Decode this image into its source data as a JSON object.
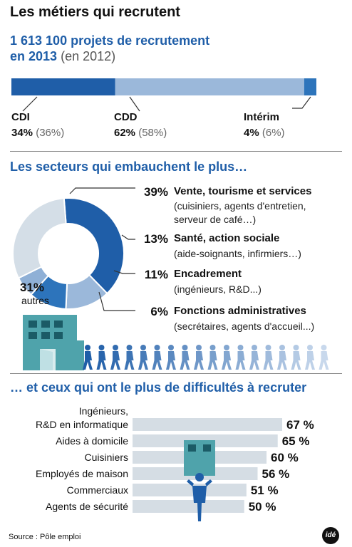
{
  "title": "Les métiers qui recrutent",
  "headline": {
    "main_1": "1 613 100 projets de recrutement",
    "main_2": "en 2013",
    "prev": "(en 2012)"
  },
  "contracts": [
    {
      "label": "CDI",
      "value": "34%",
      "prev": "(36%)",
      "share": 34,
      "color": "#1f5ea8"
    },
    {
      "label": "CDD",
      "value": "62%",
      "prev": "(58%)",
      "share": 62,
      "color": "#9bb8da"
    },
    {
      "label": "Intérim",
      "value": "4%",
      "prev": "(6%)",
      "share": 4,
      "color": "#2d74bb"
    }
  ],
  "sectors_title": "Les secteurs qui embauchent le plus…",
  "sectors": [
    {
      "pct": "39%",
      "name": "Vente, tourisme et services",
      "desc": [
        "(cuisiniers, agents d'entretien,",
        "serveur de café…)"
      ]
    },
    {
      "pct": "13%",
      "name": "Santé, action sociale",
      "desc": [
        "(aide-soignants, infirmiers…)"
      ]
    },
    {
      "pct": "11%",
      "name": "Encadrement",
      "desc": [
        "(ingénieurs, R&D...)"
      ]
    },
    {
      "pct": "6%",
      "name": "Fonctions administratives",
      "desc": [
        "(secrétaires, agents d'accueil...)"
      ]
    }
  ],
  "others": {
    "pct": "31%",
    "label": "autres"
  },
  "difficulty_title": "… et ceux qui ont le plus de difficultés à recruter",
  "chart_data": [
    {
      "type": "bar",
      "title": "",
      "categories": [
        "CDI",
        "CDD",
        "Intérim"
      ],
      "series": [
        {
          "values": [
            34,
            62,
            4
          ]
        }
      ],
      "stacked": true
    },
    {
      "type": "pie",
      "title": "Les secteurs qui embauchent le plus…",
      "labels": [
        "Vente, tourisme et services",
        "Santé, action sociale",
        "Encadrement",
        "Fonctions administratives",
        "autres"
      ],
      "values": [
        39,
        13,
        11,
        6,
        31
      ],
      "colors": [
        "#1f5ea8",
        "#9bb8da",
        "#2d74bb",
        "#8fb0d6",
        "#d4dee7"
      ]
    },
    {
      "type": "bar",
      "title": "… et ceux qui ont le plus de difficultés à recruter",
      "categories": [
        "Ingénieurs, R&D en informatique",
        "Aides à domicile",
        "Cuisiniers",
        "Employés de maison",
        "Commerciaux",
        "Agents de sécurité"
      ],
      "category_lines": [
        [
          "Ingénieurs,",
          "R&D en informatique"
        ],
        [
          "Aides à domicile"
        ],
        [
          "Cuisiniers"
        ],
        [
          "Employés de maison"
        ],
        [
          "Commerciaux"
        ],
        [
          "Agents de sécurité"
        ]
      ],
      "values": [
        67,
        65,
        60,
        56,
        51,
        50
      ],
      "value_labels": [
        "67 %",
        "65 %",
        "60 %",
        "56 %",
        "51 %",
        "50 %"
      ],
      "orientation": "horizontal",
      "xlim": [
        0,
        67
      ]
    }
  ],
  "source": "Source : Pôle emploi",
  "logo": "idé"
}
